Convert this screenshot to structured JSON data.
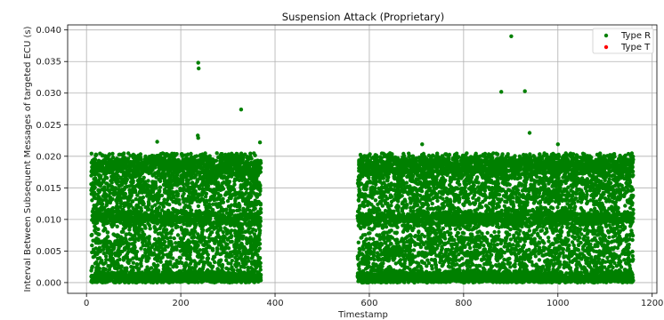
{
  "chart_data": {
    "type": "scatter",
    "title": "Suspension Attack (Proprietary)",
    "xlabel": "Timestamp",
    "ylabel": "Interval Between Subsequent Messages of targeted ECU (s)",
    "xlim": [
      -40,
      1210
    ],
    "ylim": [
      -0.0017,
      0.0408
    ],
    "xticks": [
      0,
      200,
      400,
      600,
      800,
      1000,
      1200
    ],
    "xtick_labels": [
      "0",
      "200",
      "400",
      "600",
      "800",
      "1000",
      "1200"
    ],
    "yticks": [
      0.0,
      0.005,
      0.01,
      0.015,
      0.02,
      0.025,
      0.03,
      0.035,
      0.04
    ],
    "ytick_labels": [
      "0.000",
      "0.005",
      "0.010",
      "0.015",
      "0.020",
      "0.025",
      "0.030",
      "0.035",
      "0.040"
    ],
    "grid": true,
    "legend_position": "top-right",
    "series": [
      {
        "name": "Type R",
        "color": "#008000",
        "segments": [
          {
            "x_start": 10,
            "x_end": 370,
            "y_min": 0.0,
            "y_max": 0.0205
          },
          {
            "x_start": 575,
            "x_end": 1160,
            "y_min": 0.0,
            "y_max": 0.0205
          }
        ],
        "outliers": [
          {
            "x": 150,
            "y": 0.0223
          },
          {
            "x": 237,
            "y": 0.0348
          },
          {
            "x": 238,
            "y": 0.0339
          },
          {
            "x": 236,
            "y": 0.0233
          },
          {
            "x": 237,
            "y": 0.0229
          },
          {
            "x": 328,
            "y": 0.0274
          },
          {
            "x": 368,
            "y": 0.0222
          },
          {
            "x": 712,
            "y": 0.0219
          },
          {
            "x": 880,
            "y": 0.0302
          },
          {
            "x": 901,
            "y": 0.039
          },
          {
            "x": 930,
            "y": 0.0303
          },
          {
            "x": 940,
            "y": 0.0237
          },
          {
            "x": 1000,
            "y": 0.0219
          }
        ]
      },
      {
        "name": "Type T",
        "color": "#ff0000",
        "points": []
      }
    ]
  }
}
